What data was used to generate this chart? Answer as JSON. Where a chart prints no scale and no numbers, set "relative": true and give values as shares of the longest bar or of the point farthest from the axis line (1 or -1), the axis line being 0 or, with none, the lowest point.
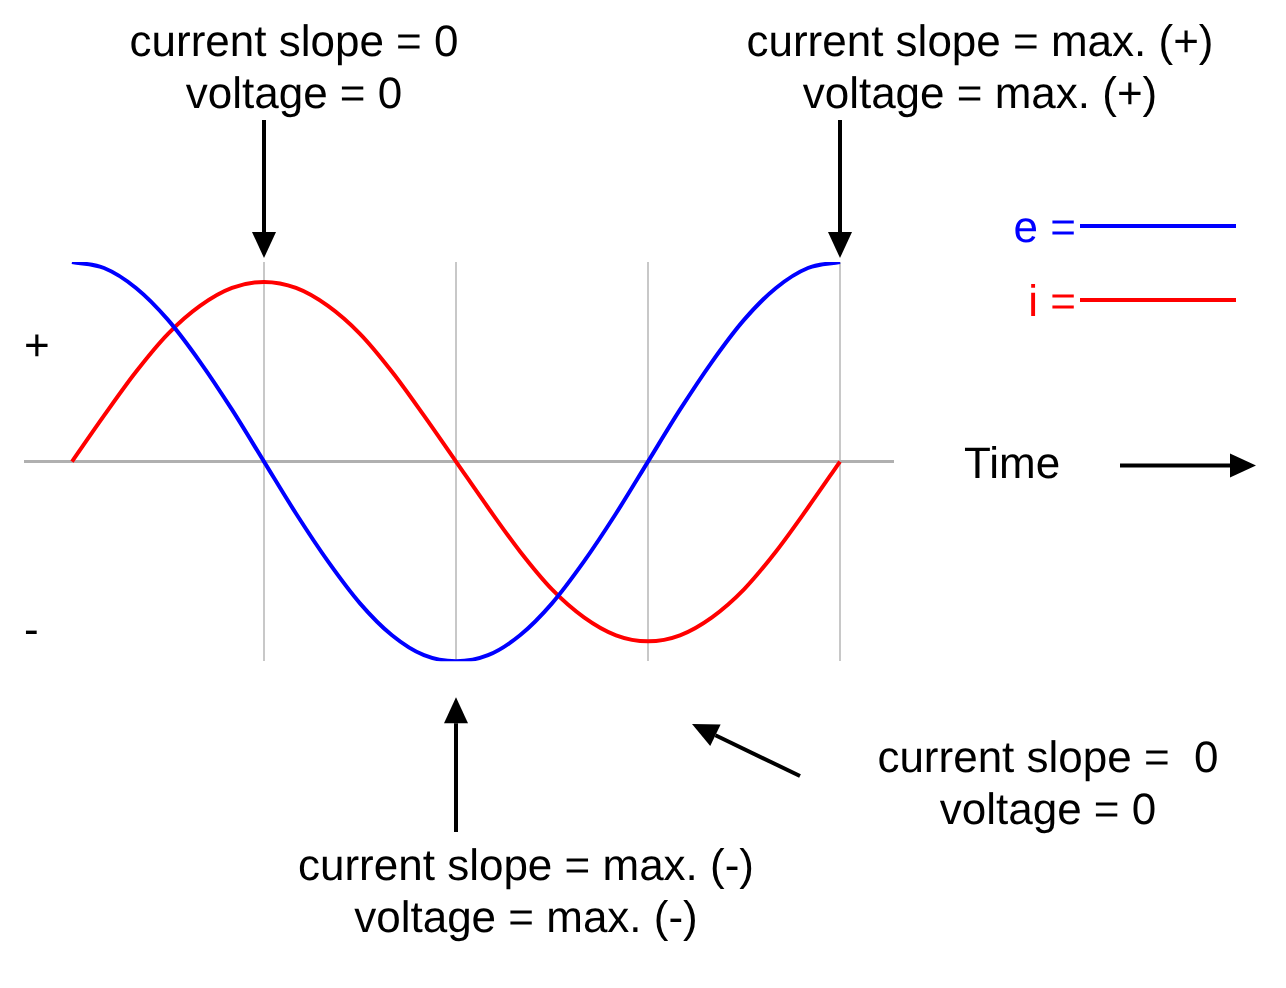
{
  "chart_data": {
    "type": "line",
    "relative": true,
    "xlabel": "Time",
    "categories": [
      null,
      null,
      null,
      null,
      null,
      null,
      null,
      null,
      null,
      null,
      null,
      null,
      null,
      null,
      null,
      null,
      null,
      null,
      null,
      null,
      null,
      null,
      null,
      null,
      null
    ],
    "series": [
      {
        "name": "e =",
        "color": "#0000ff",
        "values": [
          1,
          0.97,
          0.87,
          0.71,
          0.5,
          0.26,
          0,
          -0.26,
          -0.5,
          -0.71,
          -0.87,
          -0.97,
          -1,
          -0.97,
          -0.87,
          -0.71,
          -0.5,
          -0.26,
          0,
          0.26,
          0.5,
          0.71,
          0.87,
          0.97,
          1
        ]
      },
      {
        "name": "i =",
        "color": "#ff0000",
        "values": [
          0,
          0.23,
          0.45,
          0.64,
          0.78,
          0.87,
          0.9,
          0.87,
          0.78,
          0.64,
          0.45,
          0.23,
          0,
          -0.23,
          -0.45,
          -0.64,
          -0.78,
          -0.87,
          -0.9,
          -0.87,
          -0.78,
          -0.64,
          -0.45,
          -0.23,
          0
        ]
      }
    ],
    "annotations": [
      "current slope = 0\nvoltage = 0",
      "current slope = max. (+)\nvoltage = max. (+)",
      "current slope =  0\nvoltage = 0",
      "current slope = max. (-)\nvoltage = max. (-)",
      "+",
      "-"
    ],
    "legend": "right",
    "grid": "x",
    "marker": "none",
    "line_style": "solid"
  }
}
